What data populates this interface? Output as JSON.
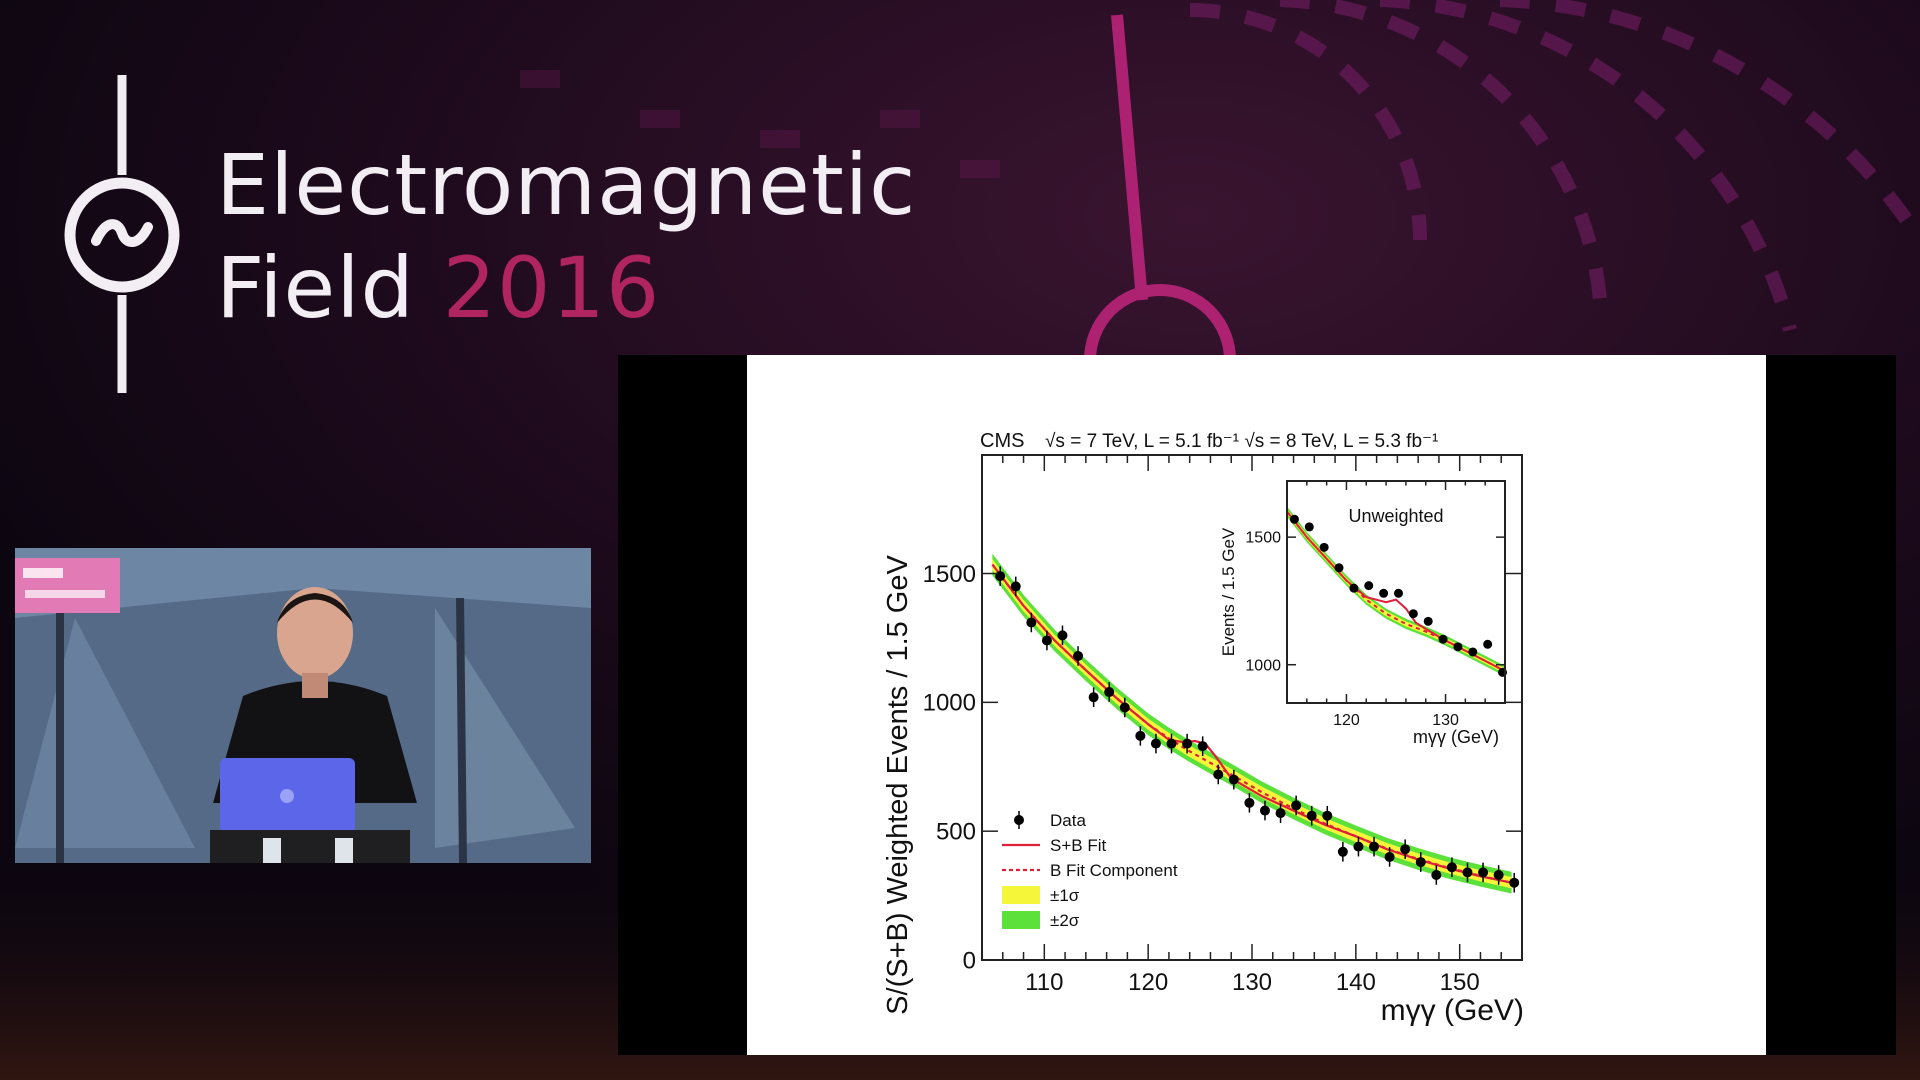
{
  "event": {
    "title_line1": "Electromagnetic",
    "title_line2_word": "Field",
    "title_year": "2016",
    "accent_color": "#b0245f",
    "logo_icon": "power-sine-symbol"
  },
  "camera": {
    "description_icon": "speaker-video-feed"
  },
  "chart_data": {
    "type": "scatter",
    "experiment": "CMS",
    "header_text": "√s = 7 TeV, L = 5.1 fb⁻¹  √s = 8 TeV, L = 5.3 fb⁻¹",
    "xlabel": "mγγ (GeV)",
    "ylabel": "S/(S+B) Weighted Events / 1.5 GeV",
    "xlim": [
      104,
      156
    ],
    "ylim": [
      0,
      1960
    ],
    "x_ticks": [
      110,
      120,
      130,
      140,
      150
    ],
    "y_ticks": [
      0,
      500,
      1000,
      1500
    ],
    "grid": false,
    "legend_position": "bottom-left",
    "legend": [
      {
        "label": "Data",
        "kind": "marker"
      },
      {
        "label": "S+B Fit",
        "kind": "line",
        "color": "#e0203a"
      },
      {
        "label": "B Fit Component",
        "kind": "dashed",
        "color": "#e0203a"
      },
      {
        "label": "±1σ",
        "kind": "band",
        "color": "#f5f53a"
      },
      {
        "label": "±2σ",
        "kind": "band",
        "color": "#5ce03a"
      }
    ],
    "series": [
      {
        "name": "Data",
        "x": [
          105.75,
          107.25,
          108.75,
          110.25,
          111.75,
          113.25,
          114.75,
          116.25,
          117.75,
          119.25,
          120.75,
          122.25,
          123.75,
          125.25,
          126.75,
          128.25,
          129.75,
          131.25,
          132.75,
          134.25,
          135.75,
          137.25,
          138.75,
          140.25,
          141.75,
          143.25,
          144.75,
          146.25,
          147.75,
          149.25,
          150.75,
          152.25,
          153.75,
          155.25
        ],
        "y": [
          1490,
          1450,
          1310,
          1240,
          1260,
          1180,
          1020,
          1040,
          980,
          870,
          840,
          840,
          840,
          830,
          720,
          700,
          610,
          580,
          570,
          600,
          560,
          560,
          420,
          440,
          440,
          400,
          430,
          380,
          330,
          360,
          340,
          340,
          330,
          300
        ],
        "yerr": 38
      },
      {
        "name": "S+B Fit",
        "x": [
          105,
          108,
          111,
          114,
          117,
          120,
          122,
          123.5,
          124.5,
          125.5,
          126.5,
          128,
          131,
          134,
          137,
          140,
          143,
          146,
          149,
          152,
          155
        ],
        "y": [
          1535,
          1375,
          1240,
          1125,
          1015,
          915,
          855,
          845,
          850,
          840,
          790,
          705,
          635,
          580,
          525,
          480,
          430,
          390,
          355,
          325,
          300
        ]
      },
      {
        "name": "B Fit Component",
        "x": [
          105,
          108,
          111,
          114,
          117,
          120,
          122,
          124,
          126,
          128,
          131,
          134,
          137,
          140,
          143,
          146,
          149,
          152,
          155
        ],
        "y": [
          1535,
          1375,
          1240,
          1125,
          1015,
          915,
          860,
          810,
          765,
          720,
          650,
          588,
          530,
          480,
          432,
          392,
          357,
          327,
          300
        ]
      }
    ],
    "inset": {
      "title": "Unweighted",
      "xlabel": "mγγ (GeV)",
      "ylabel": "Events / 1.5 GeV",
      "xlim": [
        114,
        136
      ],
      "ylim": [
        850,
        1720
      ],
      "x_ticks": [
        120,
        130
      ],
      "y_ticks": [
        1000,
        1500
      ],
      "data": {
        "x": [
          114.75,
          116.25,
          117.75,
          119.25,
          120.75,
          122.25,
          123.75,
          125.25,
          126.75,
          128.25,
          129.75,
          131.25,
          132.75,
          134.25,
          135.75
        ],
        "y": [
          1570,
          1540,
          1460,
          1380,
          1300,
          1310,
          1280,
          1280,
          1200,
          1170,
          1100,
          1070,
          1050,
          1080,
          970
        ]
      },
      "sb_fit": {
        "x": [
          114,
          116,
          118,
          120,
          122,
          124,
          125,
          126,
          127,
          128,
          130,
          132,
          134,
          136
        ],
        "y": [
          1600,
          1500,
          1415,
          1330,
          1265,
          1245,
          1255,
          1220,
          1165,
          1140,
          1095,
          1055,
          1015,
          975
        ]
      },
      "b_fit": {
        "x": [
          114,
          116,
          118,
          120,
          122,
          124,
          126,
          128,
          130,
          132,
          134,
          136
        ],
        "y": [
          1600,
          1500,
          1415,
          1330,
          1255,
          1200,
          1160,
          1130,
          1095,
          1055,
          1015,
          975
        ]
      }
    }
  }
}
